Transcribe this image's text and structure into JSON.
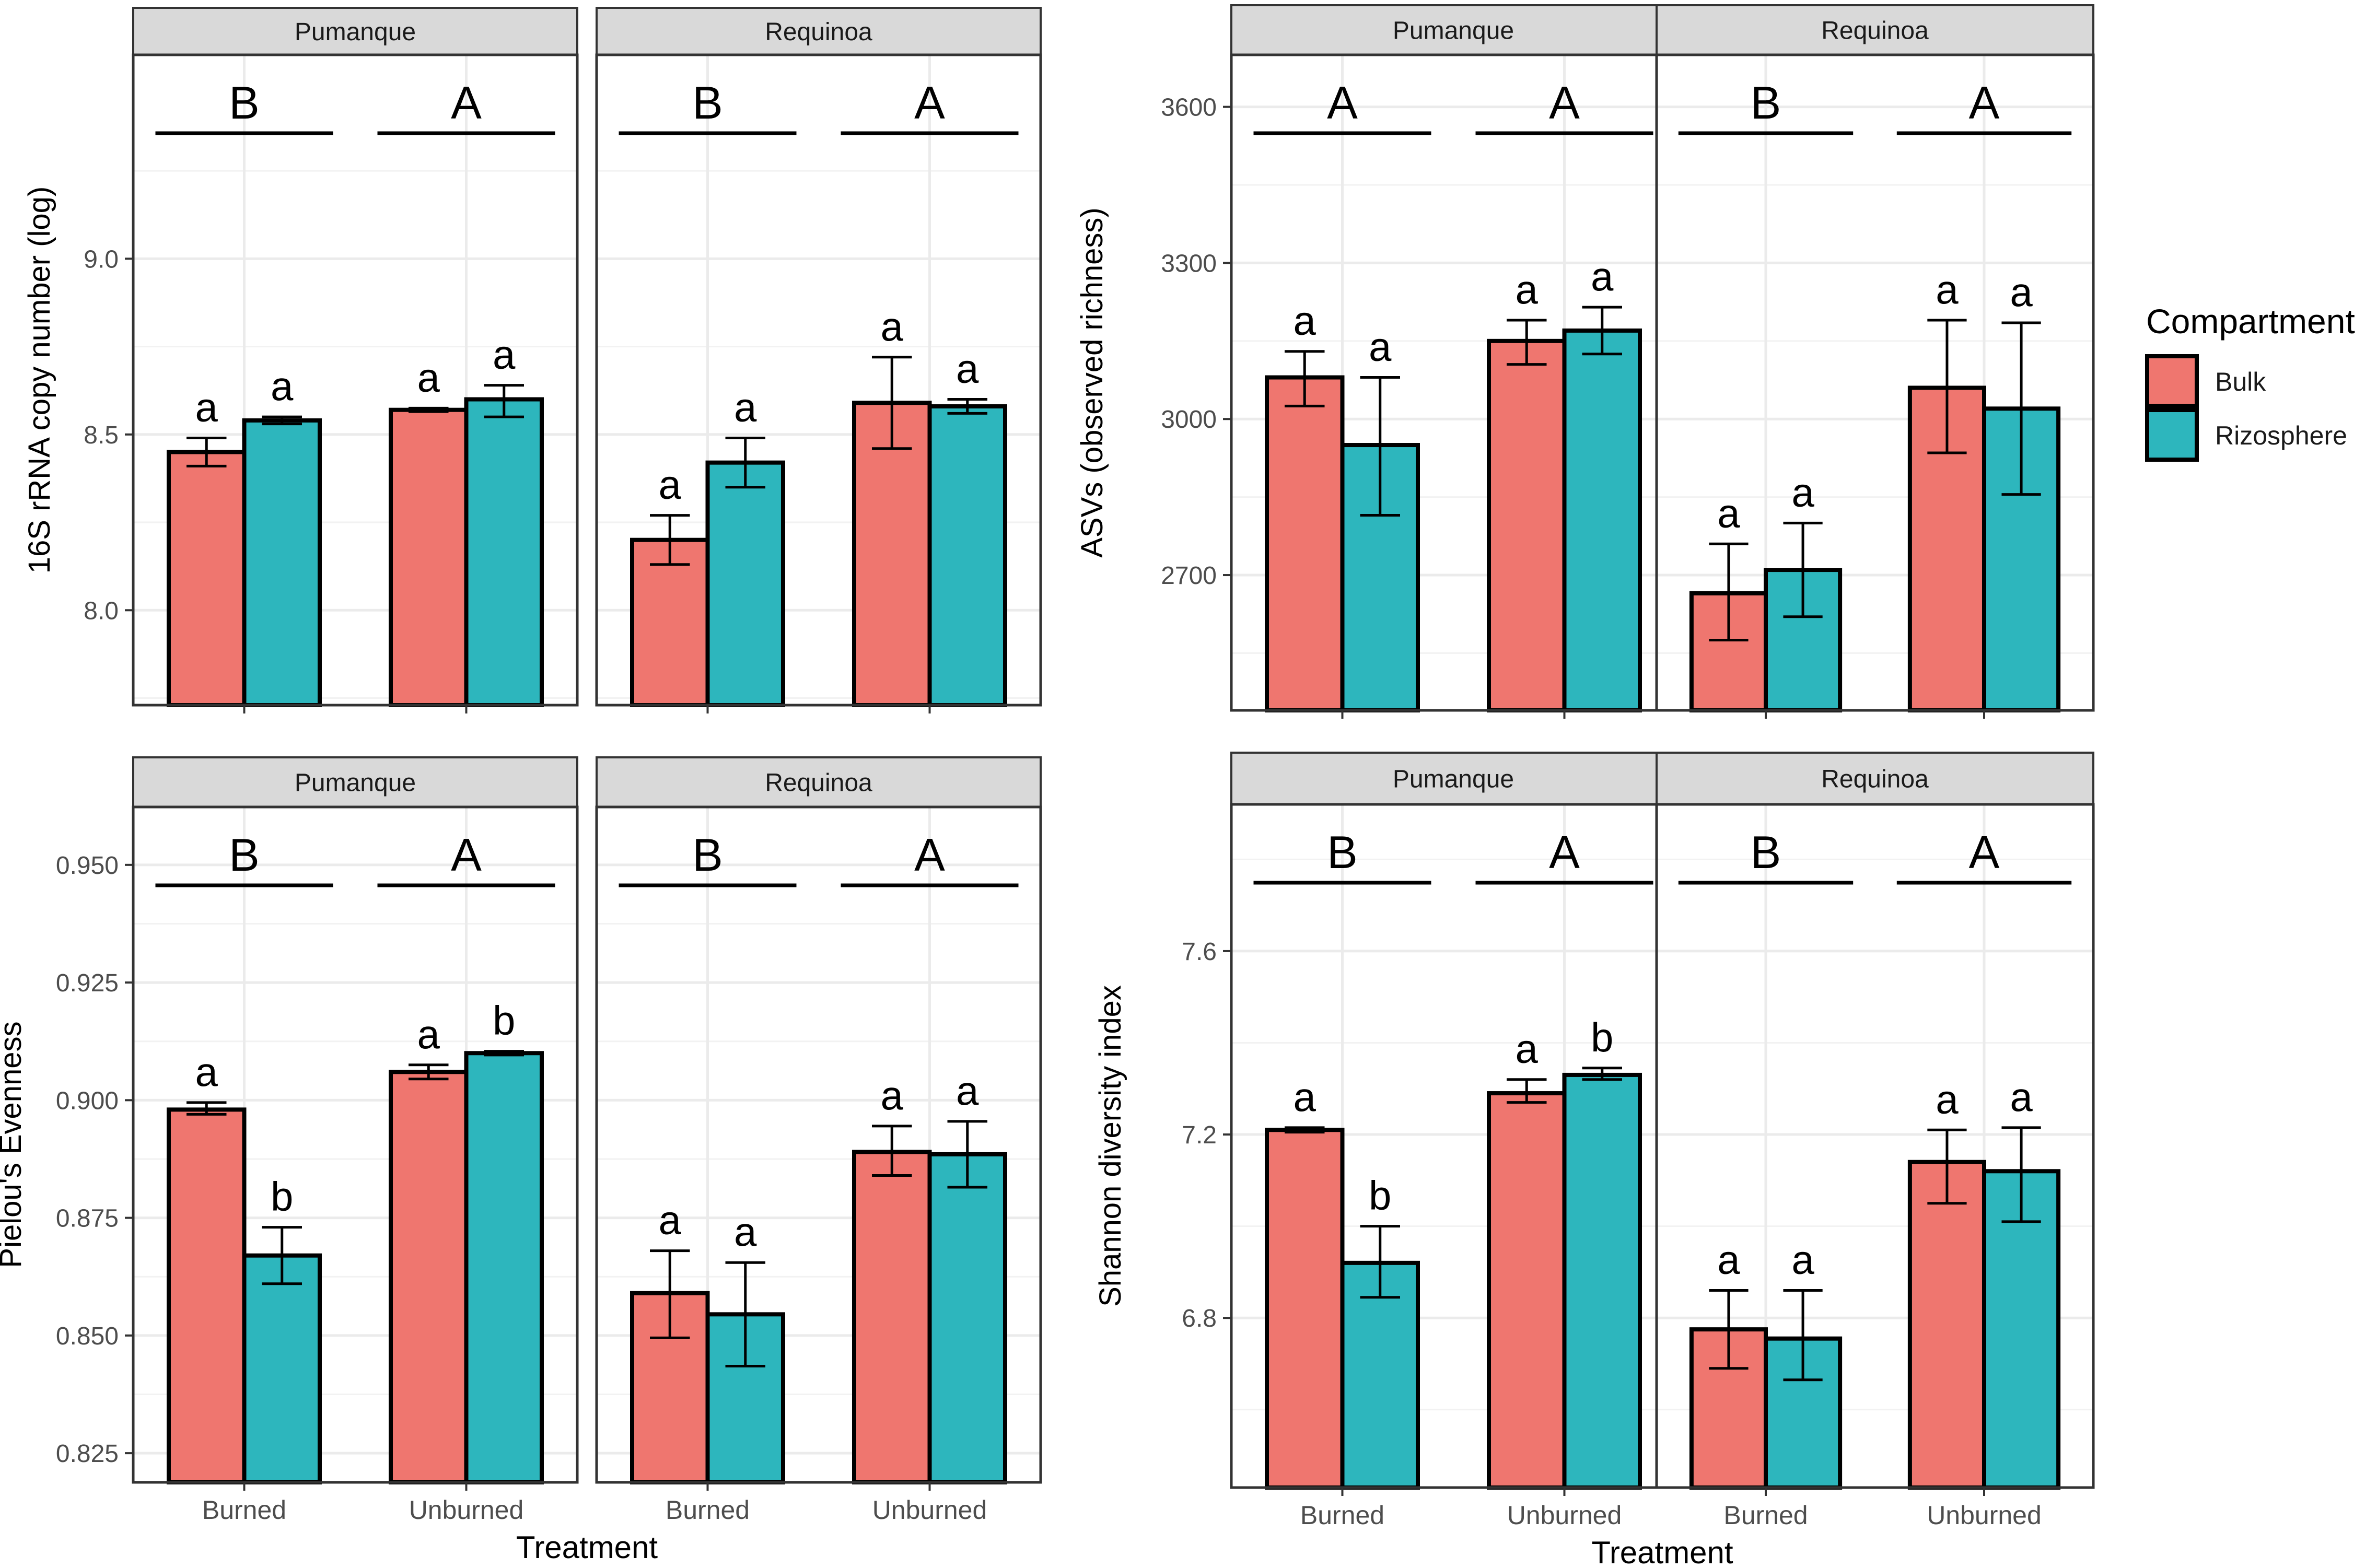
{
  "colors": {
    "bulk": "#EF766F",
    "rizosphere": "#2DB6BD",
    "strip_fill": "#D9D9D9",
    "grid": "#EBEBEB",
    "text": "#4D4D4D",
    "frame": "#333333"
  },
  "legend": {
    "title": "Compartment",
    "items": [
      {
        "label": "Bulk",
        "color_key": "bulk"
      },
      {
        "label": "Rizosphere",
        "color_key": "rizosphere"
      }
    ]
  },
  "x_axis_title": "Treatment",
  "chart_data": [
    {
      "type": "bar",
      "ylabel": "16S rRNA copy number (log)",
      "ylim": [
        7.73,
        9.58
      ],
      "yticks": [
        8.0,
        8.5,
        9.0
      ],
      "ytick_labels": [
        "8.0",
        "8.5",
        "9.0"
      ],
      "categories": [
        "Burned",
        "Unburned"
      ],
      "show_xlabels": false,
      "panels": [
        {
          "site": "Pumanque",
          "groups": [
            {
              "treatment": "Burned",
              "letter": "B",
              "bars": [
                {
                  "series": "Bulk",
                  "value": 8.45,
                  "err": [
                    8.41,
                    8.49
                  ],
                  "label": "a"
                },
                {
                  "series": "Rizosphere",
                  "value": 8.54,
                  "err": [
                    8.53,
                    8.55
                  ],
                  "label": "a"
                }
              ]
            },
            {
              "treatment": "Unburned",
              "letter": "A",
              "bars": [
                {
                  "series": "Bulk",
                  "value": 8.57,
                  "err": [
                    8.565,
                    8.575
                  ],
                  "label": "a"
                },
                {
                  "series": "Rizosphere",
                  "value": 8.6,
                  "err": [
                    8.55,
                    8.64
                  ],
                  "label": "a"
                }
              ]
            }
          ]
        },
        {
          "site": "Requinoa",
          "groups": [
            {
              "treatment": "Burned",
              "letter": "B",
              "bars": [
                {
                  "series": "Bulk",
                  "value": 8.2,
                  "err": [
                    8.13,
                    8.27
                  ],
                  "label": "a"
                },
                {
                  "series": "Rizosphere",
                  "value": 8.42,
                  "err": [
                    8.35,
                    8.49
                  ],
                  "label": "a"
                }
              ]
            },
            {
              "treatment": "Unburned",
              "letter": "A",
              "bars": [
                {
                  "series": "Bulk",
                  "value": 8.59,
                  "err": [
                    8.46,
                    8.72
                  ],
                  "label": "a"
                },
                {
                  "series": "Rizosphere",
                  "value": 8.58,
                  "err": [
                    8.56,
                    8.6
                  ],
                  "label": "a"
                }
              ]
            }
          ]
        }
      ]
    },
    {
      "type": "bar",
      "ylabel": "ASVs (observed richness)",
      "ylim": [
        2440,
        3700
      ],
      "yticks": [
        2700,
        3000,
        3300,
        3600
      ],
      "ytick_labels": [
        "2700",
        "3000",
        "3300",
        "3600"
      ],
      "categories": [
        "Burned",
        "Unburned"
      ],
      "show_xlabels": false,
      "panels": [
        {
          "site": "Pumanque",
          "groups": [
            {
              "treatment": "Burned",
              "letter": "A",
              "bars": [
                {
                  "series": "Bulk",
                  "value": 3080,
                  "err": [
                    3025,
                    3130
                  ],
                  "label": "a"
                },
                {
                  "series": "Rizosphere",
                  "value": 2950,
                  "err": [
                    2815,
                    3080
                  ],
                  "label": "a"
                }
              ]
            },
            {
              "treatment": "Unburned",
              "letter": "A",
              "bars": [
                {
                  "series": "Bulk",
                  "value": 3150,
                  "err": [
                    3105,
                    3190
                  ],
                  "label": "a"
                },
                {
                  "series": "Rizosphere",
                  "value": 3170,
                  "err": [
                    3125,
                    3215
                  ],
                  "label": "a"
                }
              ]
            }
          ]
        },
        {
          "site": "Requinoa",
          "groups": [
            {
              "treatment": "Burned",
              "letter": "B",
              "bars": [
                {
                  "series": "Bulk",
                  "value": 2665,
                  "err": [
                    2575,
                    2760
                  ],
                  "label": "a"
                },
                {
                  "series": "Rizosphere",
                  "value": 2710,
                  "err": [
                    2620,
                    2800
                  ],
                  "label": "a"
                }
              ]
            },
            {
              "treatment": "Unburned",
              "letter": "A",
              "bars": [
                {
                  "series": "Bulk",
                  "value": 3060,
                  "err": [
                    2935,
                    3190
                  ],
                  "label": "a"
                },
                {
                  "series": "Rizosphere",
                  "value": 3020,
                  "err": [
                    2855,
                    3185
                  ],
                  "label": "a"
                }
              ]
            }
          ]
        }
      ]
    },
    {
      "type": "bar",
      "ylabel": "Pielou's Evenness",
      "ylim": [
        0.8188,
        0.9623
      ],
      "yticks": [
        0.825,
        0.85,
        0.875,
        0.9,
        0.925,
        0.95
      ],
      "ytick_labels": [
        "0.825",
        "0.850",
        "0.875",
        "0.900",
        "0.925",
        "0.950"
      ],
      "categories": [
        "Burned",
        "Unburned"
      ],
      "show_xlabels": true,
      "panels": [
        {
          "site": "Pumanque",
          "groups": [
            {
              "treatment": "Burned",
              "letter": "B",
              "bars": [
                {
                  "series": "Bulk",
                  "value": 0.898,
                  "err": [
                    0.897,
                    0.8995
                  ],
                  "label": "a"
                },
                {
                  "series": "Rizosphere",
                  "value": 0.867,
                  "err": [
                    0.861,
                    0.873
                  ],
                  "label": "b"
                }
              ]
            },
            {
              "treatment": "Unburned",
              "letter": "A",
              "bars": [
                {
                  "series": "Bulk",
                  "value": 0.906,
                  "err": [
                    0.9045,
                    0.9075
                  ],
                  "label": "a"
                },
                {
                  "series": "Rizosphere",
                  "value": 0.91,
                  "err": [
                    0.9096,
                    0.9104
                  ],
                  "label": "b"
                }
              ]
            }
          ]
        },
        {
          "site": "Requinoa",
          "groups": [
            {
              "treatment": "Burned",
              "letter": "B",
              "bars": [
                {
                  "series": "Bulk",
                  "value": 0.859,
                  "err": [
                    0.8495,
                    0.868
                  ],
                  "label": "a"
                },
                {
                  "series": "Rizosphere",
                  "value": 0.8545,
                  "err": [
                    0.8435,
                    0.8655
                  ],
                  "label": "a"
                }
              ]
            },
            {
              "treatment": "Unburned",
              "letter": "A",
              "bars": [
                {
                  "series": "Bulk",
                  "value": 0.889,
                  "err": [
                    0.884,
                    0.8945
                  ],
                  "label": "a"
                },
                {
                  "series": "Rizosphere",
                  "value": 0.8885,
                  "err": [
                    0.8815,
                    0.8955
                  ],
                  "label": "a"
                }
              ]
            }
          ]
        }
      ]
    },
    {
      "type": "bar",
      "ylabel": "Shannon diversity index",
      "ylim": [
        6.43,
        7.92
      ],
      "yticks": [
        6.8,
        7.2,
        7.6
      ],
      "ytick_labels": [
        "6.8",
        "7.2",
        "7.6"
      ],
      "categories": [
        "Burned",
        "Unburned"
      ],
      "show_xlabels": true,
      "panels": [
        {
          "site": "Pumanque",
          "groups": [
            {
              "treatment": "Burned",
              "letter": "B",
              "bars": [
                {
                  "series": "Bulk",
                  "value": 7.21,
                  "err": [
                    7.205,
                    7.215
                  ],
                  "label": "a"
                },
                {
                  "series": "Rizosphere",
                  "value": 6.92,
                  "err": [
                    6.845,
                    7.0
                  ],
                  "label": "b"
                }
              ]
            },
            {
              "treatment": "Unburned",
              "letter": "A",
              "bars": [
                {
                  "series": "Bulk",
                  "value": 7.29,
                  "err": [
                    7.27,
                    7.32
                  ],
                  "label": "a"
                },
                {
                  "series": "Rizosphere",
                  "value": 7.33,
                  "err": [
                    7.32,
                    7.345
                  ],
                  "label": "b"
                }
              ]
            }
          ]
        },
        {
          "site": "Requinoa",
          "groups": [
            {
              "treatment": "Burned",
              "letter": "B",
              "bars": [
                {
                  "series": "Bulk",
                  "value": 6.775,
                  "err": [
                    6.69,
                    6.86
                  ],
                  "label": "a"
                },
                {
                  "series": "Rizosphere",
                  "value": 6.755,
                  "err": [
                    6.665,
                    6.86
                  ],
                  "label": "a"
                }
              ]
            },
            {
              "treatment": "Unburned",
              "letter": "A",
              "bars": [
                {
                  "series": "Bulk",
                  "value": 7.14,
                  "err": [
                    7.05,
                    7.21
                  ],
                  "label": "a"
                },
                {
                  "series": "Rizosphere",
                  "value": 7.12,
                  "err": [
                    7.01,
                    7.215
                  ],
                  "label": "a"
                }
              ]
            }
          ]
        }
      ]
    }
  ]
}
